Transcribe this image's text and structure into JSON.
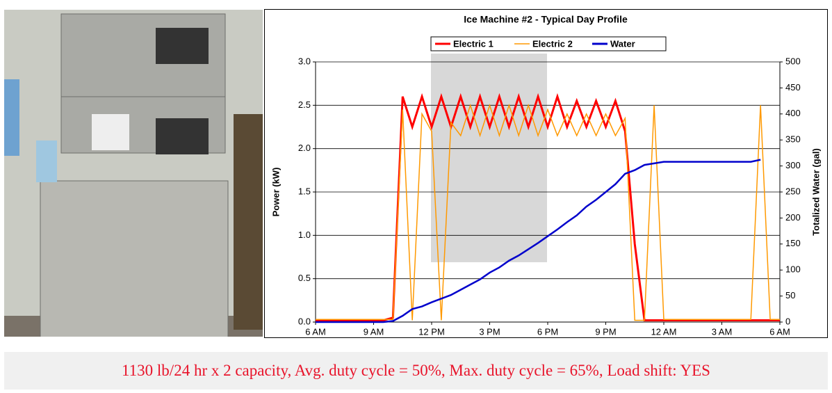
{
  "chart_data": {
    "type": "line",
    "title": "Ice Machine #2 - Typical Day Profile",
    "ylabel": "Power (kW)",
    "y2label": "Totalized Water (gal)",
    "x": [
      6,
      6.5,
      7,
      7.5,
      8,
      8.5,
      9,
      9.5,
      10,
      10.5,
      11,
      11.5,
      12,
      12.5,
      13,
      13.5,
      14,
      14.5,
      15,
      15.5,
      16,
      16.5,
      17,
      17.5,
      18,
      18.5,
      19,
      19.5,
      20,
      20.5,
      21,
      21.5,
      22,
      22.5,
      23,
      23.5,
      24,
      24.5,
      25,
      25.5,
      26,
      26.5,
      27,
      27.5,
      28,
      28.5,
      29,
      29.5,
      30
    ],
    "xlim": [
      6,
      30
    ],
    "xticks": [
      {
        "value": 6,
        "label": "6 AM"
      },
      {
        "value": 9,
        "label": "9 AM"
      },
      {
        "value": 12,
        "label": "12 PM"
      },
      {
        "value": 15,
        "label": "3 PM"
      },
      {
        "value": 18,
        "label": "6 PM"
      },
      {
        "value": 21,
        "label": "9 PM"
      },
      {
        "value": 24,
        "label": "12 AM"
      },
      {
        "value": 27,
        "label": "3 AM"
      },
      {
        "value": 30,
        "label": "6 AM"
      }
    ],
    "ylim": [
      0,
      3
    ],
    "yticks": [
      {
        "value": 0,
        "label": "0.0"
      },
      {
        "value": 0.5,
        "label": "0.5"
      },
      {
        "value": 1,
        "label": "1.0"
      },
      {
        "value": 1.5,
        "label": "1.5"
      },
      {
        "value": 2,
        "label": "2.0"
      },
      {
        "value": 2.5,
        "label": "2.5"
      },
      {
        "value": 3,
        "label": "3.0"
      }
    ],
    "y2lim": [
      0,
      500
    ],
    "y2ticks": [
      0,
      50,
      100,
      150,
      200,
      250,
      300,
      350,
      400,
      450,
      500
    ],
    "grid": true,
    "series": [
      {
        "name": "Electric 1",
        "color": "#ff0000",
        "values": [
          0.02,
          0.02,
          0.02,
          0.02,
          0.02,
          0.02,
          0.02,
          0.02,
          0.05,
          2.6,
          2.25,
          2.6,
          2.25,
          2.6,
          2.25,
          2.6,
          2.25,
          2.6,
          2.25,
          2.6,
          2.25,
          2.6,
          2.25,
          2.6,
          2.25,
          2.6,
          2.25,
          2.55,
          2.25,
          2.55,
          2.25,
          2.55,
          2.2,
          0.9,
          0.02,
          0.02,
          0.02,
          0.02,
          0.02,
          0.02,
          0.02,
          0.02,
          0.02,
          0.02,
          0.02,
          0.02,
          0.02,
          0.02,
          0.02
        ]
      },
      {
        "name": "Electric 2",
        "color": "#ff9900",
        "values": [
          0.03,
          0.03,
          0.03,
          0.03,
          0.03,
          0.03,
          0.03,
          0.03,
          0.03,
          2.45,
          0.02,
          2.4,
          2.2,
          0.02,
          2.3,
          2.15,
          2.5,
          2.15,
          2.5,
          2.15,
          2.5,
          2.15,
          2.5,
          2.15,
          2.45,
          2.15,
          2.4,
          2.15,
          2.4,
          2.15,
          2.4,
          2.15,
          2.35,
          0.02,
          0.02,
          2.5,
          0.03,
          0.03,
          0.03,
          0.03,
          0.03,
          0.03,
          0.03,
          0.03,
          0.03,
          0.03,
          2.5,
          0.03,
          0.03
        ]
      },
      {
        "name": "Water",
        "color": "#0000cc",
        "axis": "y2",
        "values": [
          0,
          0,
          0,
          0,
          0,
          0,
          0,
          0,
          2,
          12,
          25,
          30,
          38,
          45,
          52,
          62,
          72,
          82,
          95,
          105,
          118,
          128,
          140,
          152,
          165,
          178,
          192,
          205,
          222,
          235,
          250,
          265,
          285,
          292,
          302,
          305,
          308,
          308,
          308,
          308,
          308,
          308,
          308,
          308,
          308,
          308,
          312,
          null,
          null
        ]
      }
    ]
  },
  "caption": "1130 lb/24 hr x 2 capacity, Avg. duty cycle = 50%, Max. duty cycle = 65%, Load shift: YES"
}
